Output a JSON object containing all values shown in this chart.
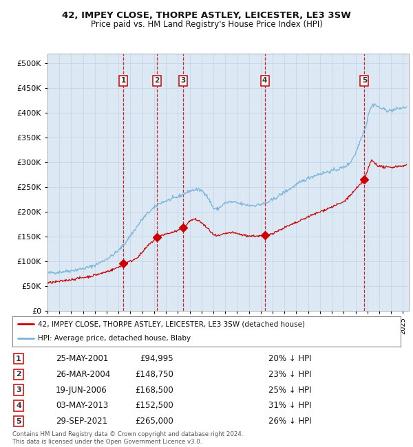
{
  "title": "42, IMPEY CLOSE, THORPE ASTLEY, LEICESTER, LE3 3SW",
  "subtitle": "Price paid vs. HM Land Registry's House Price Index (HPI)",
  "background_color": "#ffffff",
  "plot_bg_color": "#dce9f5",
  "grid_color": "#c8d8e8",
  "hpi_line_color": "#7ab4d8",
  "price_line_color": "#cc0000",
  "marker_color": "#cc0000",
  "vline_color": "#cc0000",
  "sale_dates_x": [
    2001.388,
    2004.233,
    2006.463,
    2013.336,
    2021.747
  ],
  "sale_prices_y": [
    94995,
    148750,
    168500,
    152500,
    265000
  ],
  "sale_labels": [
    "1",
    "2",
    "3",
    "4",
    "5"
  ],
  "sale_table": [
    [
      "1",
      "25-MAY-2001",
      "£94,995",
      "20% ↓ HPI"
    ],
    [
      "2",
      "26-MAR-2004",
      "£148,750",
      "23% ↓ HPI"
    ],
    [
      "3",
      "19-JUN-2006",
      "£168,500",
      "25% ↓ HPI"
    ],
    [
      "4",
      "03-MAY-2013",
      "£152,500",
      "31% ↓ HPI"
    ],
    [
      "5",
      "29-SEP-2021",
      "£265,000",
      "26% ↓ HPI"
    ]
  ],
  "legend_line1": "42, IMPEY CLOSE, THORPE ASTLEY, LEICESTER, LE3 3SW (detached house)",
  "legend_line2": "HPI: Average price, detached house, Blaby",
  "footer": "Contains HM Land Registry data © Crown copyright and database right 2024.\nThis data is licensed under the Open Government Licence v3.0.",
  "xmin": 1995.0,
  "xmax": 2025.5,
  "ymin": 0,
  "ymax": 520000,
  "yticks": [
    0,
    50000,
    100000,
    150000,
    200000,
    250000,
    300000,
    350000,
    400000,
    450000,
    500000
  ],
  "hpi_refs": [
    [
      1995.0,
      76000
    ],
    [
      1995.5,
      77000
    ],
    [
      1996.0,
      78000
    ],
    [
      1996.5,
      79500
    ],
    [
      1997.0,
      81000
    ],
    [
      1997.5,
      83000
    ],
    [
      1998.0,
      85000
    ],
    [
      1998.5,
      88000
    ],
    [
      1999.0,
      92000
    ],
    [
      1999.5,
      98000
    ],
    [
      2000.0,
      105000
    ],
    [
      2000.5,
      112000
    ],
    [
      2001.0,
      122000
    ],
    [
      2001.5,
      135000
    ],
    [
      2002.0,
      152000
    ],
    [
      2002.5,
      168000
    ],
    [
      2003.0,
      185000
    ],
    [
      2003.5,
      198000
    ],
    [
      2004.0,
      208000
    ],
    [
      2004.5,
      218000
    ],
    [
      2005.0,
      222000
    ],
    [
      2005.5,
      226000
    ],
    [
      2006.0,
      230000
    ],
    [
      2006.5,
      236000
    ],
    [
      2007.0,
      242000
    ],
    [
      2007.5,
      245000
    ],
    [
      2008.0,
      243000
    ],
    [
      2008.3,
      238000
    ],
    [
      2008.7,
      222000
    ],
    [
      2009.0,
      207000
    ],
    [
      2009.3,
      205000
    ],
    [
      2009.6,
      210000
    ],
    [
      2010.0,
      218000
    ],
    [
      2010.5,
      220000
    ],
    [
      2011.0,
      218000
    ],
    [
      2011.5,
      215000
    ],
    [
      2012.0,
      213000
    ],
    [
      2012.5,
      213000
    ],
    [
      2013.0,
      215000
    ],
    [
      2013.5,
      218000
    ],
    [
      2014.0,
      224000
    ],
    [
      2014.5,
      232000
    ],
    [
      2015.0,
      240000
    ],
    [
      2015.5,
      247000
    ],
    [
      2016.0,
      255000
    ],
    [
      2016.5,
      262000
    ],
    [
      2017.0,
      268000
    ],
    [
      2017.5,
      273000
    ],
    [
      2018.0,
      277000
    ],
    [
      2018.5,
      280000
    ],
    [
      2019.0,
      283000
    ],
    [
      2019.5,
      286000
    ],
    [
      2020.0,
      290000
    ],
    [
      2020.5,
      298000
    ],
    [
      2021.0,
      318000
    ],
    [
      2021.3,
      338000
    ],
    [
      2021.6,
      358000
    ],
    [
      2021.9,
      375000
    ],
    [
      2022.1,
      400000
    ],
    [
      2022.4,
      415000
    ],
    [
      2022.6,
      418000
    ],
    [
      2022.9,
      412000
    ],
    [
      2023.3,
      408000
    ],
    [
      2023.7,
      405000
    ],
    [
      2024.0,
      405000
    ],
    [
      2024.5,
      408000
    ],
    [
      2025.3,
      412000
    ]
  ],
  "price_refs": [
    [
      1995.0,
      56000
    ],
    [
      1995.5,
      57500
    ],
    [
      1996.0,
      59000
    ],
    [
      1996.5,
      61000
    ],
    [
      1997.0,
      63000
    ],
    [
      1997.5,
      65000
    ],
    [
      1998.0,
      67000
    ],
    [
      1998.5,
      69000
    ],
    [
      1999.0,
      72000
    ],
    [
      1999.5,
      75000
    ],
    [
      2000.0,
      79000
    ],
    [
      2000.5,
      83000
    ],
    [
      2001.0,
      88000
    ],
    [
      2001.388,
      94995
    ],
    [
      2001.8,
      98000
    ],
    [
      2002.2,
      102000
    ],
    [
      2002.7,
      110000
    ],
    [
      2003.0,
      118000
    ],
    [
      2003.5,
      132000
    ],
    [
      2004.0,
      143000
    ],
    [
      2004.233,
      148750
    ],
    [
      2004.5,
      152000
    ],
    [
      2005.0,
      155000
    ],
    [
      2005.5,
      158000
    ],
    [
      2006.0,
      162000
    ],
    [
      2006.463,
      168500
    ],
    [
      2006.8,
      176000
    ],
    [
      2007.0,
      181000
    ],
    [
      2007.3,
      185000
    ],
    [
      2007.7,
      183000
    ],
    [
      2008.0,
      178000
    ],
    [
      2008.3,
      171000
    ],
    [
      2008.7,
      162000
    ],
    [
      2009.0,
      153000
    ],
    [
      2009.3,
      151000
    ],
    [
      2009.6,
      152000
    ],
    [
      2010.0,
      156000
    ],
    [
      2010.5,
      158000
    ],
    [
      2011.0,
      156000
    ],
    [
      2011.5,
      153000
    ],
    [
      2012.0,
      151000
    ],
    [
      2012.5,
      151000
    ],
    [
      2013.0,
      151000
    ],
    [
      2013.336,
      152500
    ],
    [
      2013.7,
      154000
    ],
    [
      2014.0,
      157000
    ],
    [
      2014.5,
      162000
    ],
    [
      2015.0,
      168000
    ],
    [
      2015.5,
      173000
    ],
    [
      2016.0,
      178000
    ],
    [
      2016.5,
      184000
    ],
    [
      2017.0,
      190000
    ],
    [
      2017.5,
      195000
    ],
    [
      2018.0,
      200000
    ],
    [
      2018.5,
      205000
    ],
    [
      2019.0,
      210000
    ],
    [
      2019.5,
      215000
    ],
    [
      2020.0,
      220000
    ],
    [
      2020.5,
      232000
    ],
    [
      2021.0,
      245000
    ],
    [
      2021.5,
      258000
    ],
    [
      2021.747,
      265000
    ],
    [
      2022.0,
      282000
    ],
    [
      2022.2,
      297000
    ],
    [
      2022.35,
      304000
    ],
    [
      2022.5,
      302000
    ],
    [
      2022.7,
      297000
    ],
    [
      2023.0,
      292000
    ],
    [
      2023.5,
      290000
    ],
    [
      2024.0,
      290000
    ],
    [
      2024.5,
      292000
    ],
    [
      2025.3,
      294000
    ]
  ]
}
